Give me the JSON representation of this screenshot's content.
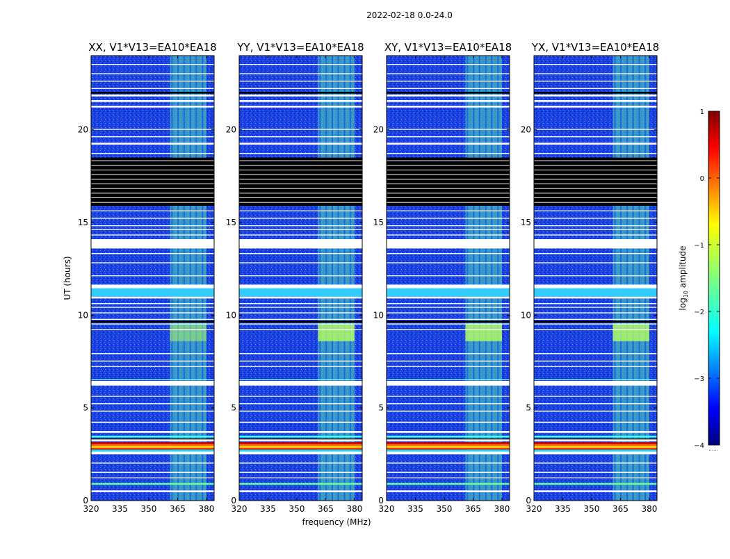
{
  "chart_data": {
    "type": "heatmap",
    "title": "2022-02-18 0.0-24.0",
    "xlabel": "frequency (MHz)",
    "ylabel": "UT (hours)",
    "x_ticks": [
      "320",
      "335",
      "350",
      "365",
      "380"
    ],
    "y_ticks": [
      "0",
      "5",
      "10",
      "15",
      "20"
    ],
    "xlim": [
      320,
      384
    ],
    "ylim": [
      0,
      24
    ],
    "rfi_band_mhz": [
      361,
      380
    ],
    "panels": [
      {
        "title": "XX, V1*V13=EA10*EA18",
        "polarization": "XX"
      },
      {
        "title": "YY, V1*V13=EA10*EA18",
        "polarization": "YY"
      },
      {
        "title": "XY, V1*V13=EA10*EA18",
        "polarization": "XY"
      },
      {
        "title": "YX, V1*V13=EA10*EA18",
        "polarization": "YX"
      }
    ],
    "colorbar": {
      "label": "log10 amplitude",
      "label_base": "log",
      "label_sub": "10",
      "label_rest": " amplitude",
      "range": [
        -4,
        1
      ],
      "ticks": [
        "1",
        "0",
        "−1",
        "−2",
        "−3",
        "−4"
      ],
      "colormap": "jet",
      "footnote": "......"
    },
    "flagged_hours": [
      [
        16.0,
        18.5
      ]
    ],
    "bright_hours": [
      [
        2.6,
        3.3
      ]
    ]
  }
}
